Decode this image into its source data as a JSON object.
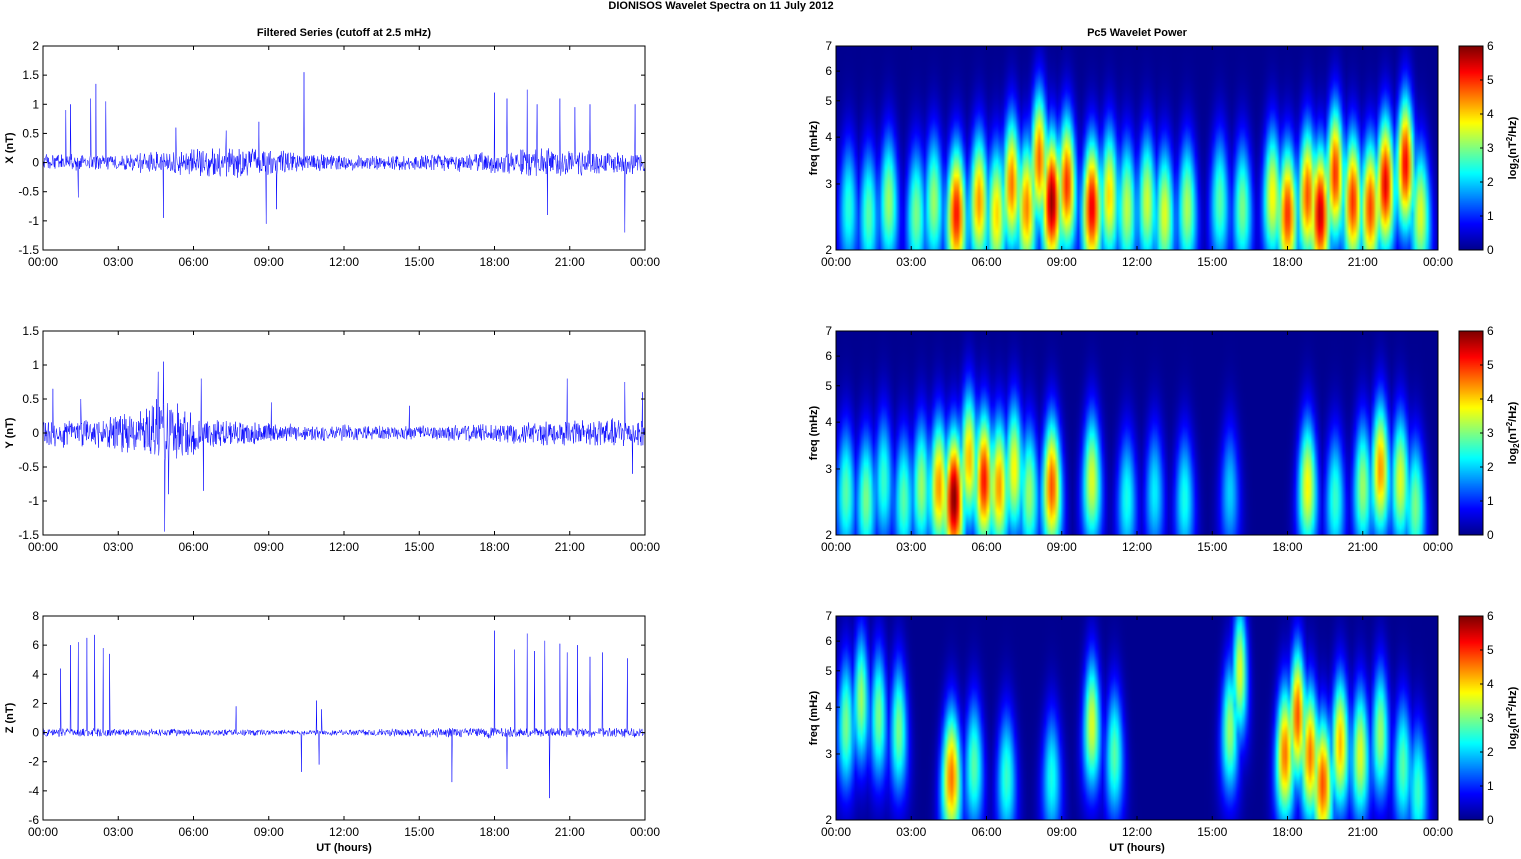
{
  "figure": {
    "title": "DIONISOS Wavelet Spectra on 11 July      2012",
    "left_title": "Filtered Series (cutoff at 2.5 mHz)",
    "right_title": "Pc5 Wavelet Power"
  },
  "chart_data": [
    {
      "type": "line",
      "ylabel": "X (nT)",
      "xlabel": "",
      "ylim": [
        -1.5,
        2
      ],
      "yticks": [
        "-1.5",
        "-1",
        "-0.5",
        "0",
        "0.5",
        "1",
        "1.5",
        "2"
      ],
      "xticks": [
        "00:00",
        "03:00",
        "06:00",
        "09:00",
        "12:00",
        "15:00",
        "18:00",
        "21:00",
        "00:00"
      ],
      "line_color": "#0000ff",
      "series": [
        {
          "noise_profile_hours": [
            0,
            3,
            4.5,
            6,
            8,
            9,
            10,
            12,
            15,
            18,
            19.5,
            21,
            24
          ],
          "noise_profile_amplitude": [
            0.12,
            0.1,
            0.16,
            0.18,
            0.22,
            0.18,
            0.14,
            0.1,
            0.1,
            0.14,
            0.2,
            0.18,
            0.14
          ],
          "spikes": [
            [
              0.9,
              0.9
            ],
            [
              1.1,
              1.0
            ],
            [
              1.4,
              -0.6
            ],
            [
              1.9,
              1.1
            ],
            [
              2.1,
              1.35
            ],
            [
              2.5,
              1.05
            ],
            [
              4.8,
              -0.95
            ],
            [
              5.3,
              0.6
            ],
            [
              7.3,
              0.55
            ],
            [
              8.6,
              0.7
            ],
            [
              8.9,
              -1.05
            ],
            [
              9.3,
              -0.8
            ],
            [
              10.4,
              1.55
            ],
            [
              18.0,
              1.2
            ],
            [
              18.5,
              1.1
            ],
            [
              19.3,
              1.25
            ],
            [
              19.7,
              1.0
            ],
            [
              20.1,
              -0.9
            ],
            [
              20.6,
              1.1
            ],
            [
              21.2,
              0.95
            ],
            [
              21.8,
              1.0
            ],
            [
              23.2,
              -1.2
            ],
            [
              23.6,
              1.0
            ]
          ]
        }
      ]
    },
    {
      "type": "line",
      "ylabel": "Y (nT)",
      "xlabel": "",
      "ylim": [
        -1.5,
        1.5
      ],
      "yticks": [
        "-1.5",
        "-1",
        "-0.5",
        "0",
        "0.5",
        "1",
        "1.5"
      ],
      "xticks": [
        "00:00",
        "03:00",
        "06:00",
        "09:00",
        "12:00",
        "15:00",
        "18:00",
        "21:00",
        "00:00"
      ],
      "line_color": "#0000ff",
      "series": [
        {
          "noise_profile_hours": [
            0,
            2,
            4,
            4.8,
            5.5,
            6.5,
            8,
            10,
            14,
            18,
            20,
            22,
            24
          ],
          "noise_profile_amplitude": [
            0.18,
            0.16,
            0.25,
            0.45,
            0.3,
            0.2,
            0.14,
            0.1,
            0.08,
            0.1,
            0.14,
            0.16,
            0.18
          ],
          "spikes": [
            [
              0.4,
              0.65
            ],
            [
              1.5,
              0.5
            ],
            [
              4.6,
              0.9
            ],
            [
              4.8,
              1.05
            ],
            [
              4.85,
              -1.45
            ],
            [
              5.0,
              -0.9
            ],
            [
              6.3,
              0.8
            ],
            [
              6.4,
              -0.85
            ],
            [
              9.1,
              0.45
            ],
            [
              14.6,
              0.4
            ],
            [
              20.9,
              0.8
            ],
            [
              23.2,
              0.75
            ],
            [
              23.5,
              -0.6
            ],
            [
              23.9,
              0.6
            ]
          ]
        }
      ]
    },
    {
      "type": "line",
      "ylabel": "Z (nT)",
      "xlabel": "UT (hours)",
      "ylim": [
        -6,
        8
      ],
      "yticks": [
        "-6",
        "-4",
        "-2",
        "0",
        "2",
        "4",
        "6",
        "8"
      ],
      "xticks": [
        "00:00",
        "03:00",
        "06:00",
        "09:00",
        "12:00",
        "15:00",
        "18:00",
        "21:00",
        "00:00"
      ],
      "line_color": "#0000ff",
      "series": [
        {
          "noise_profile_hours": [
            0,
            3,
            5,
            10,
            12,
            18,
            20,
            24
          ],
          "noise_profile_amplitude": [
            0.25,
            0.2,
            0.2,
            0.15,
            0.15,
            0.3,
            0.25,
            0.25
          ],
          "spikes": [
            [
              0.7,
              4.4
            ],
            [
              1.1,
              6.0
            ],
            [
              1.4,
              6.2
            ],
            [
              1.75,
              6.5
            ],
            [
              2.05,
              6.7
            ],
            [
              2.4,
              5.8
            ],
            [
              2.65,
              5.4
            ],
            [
              7.7,
              1.8
            ],
            [
              10.3,
              -2.7
            ],
            [
              10.9,
              2.2
            ],
            [
              11.1,
              1.6
            ],
            [
              11.0,
              -2.2
            ],
            [
              16.3,
              -3.4
            ],
            [
              18.0,
              7.0
            ],
            [
              18.5,
              -2.5
            ],
            [
              18.8,
              5.7
            ],
            [
              19.3,
              6.8
            ],
            [
              19.6,
              5.6
            ],
            [
              20.0,
              6.3
            ],
            [
              20.2,
              -4.5
            ],
            [
              20.6,
              6.1
            ],
            [
              20.9,
              5.5
            ],
            [
              21.3,
              6.0
            ],
            [
              21.8,
              5.2
            ],
            [
              22.3,
              5.5
            ],
            [
              23.3,
              5.1
            ]
          ]
        }
      ]
    },
    {
      "type": "heatmap",
      "ylabel": "freq (mHz)",
      "xlabel": "",
      "ylim": [
        2,
        7
      ],
      "yscale": "log",
      "yticks": [
        "2",
        "3",
        "4",
        "5",
        "6",
        "7"
      ],
      "xticks": [
        "00:00",
        "03:00",
        "06:00",
        "09:00",
        "12:00",
        "15:00",
        "18:00",
        "21:00",
        "00:00"
      ],
      "colorbar": {
        "label": "log2(nT2/Hz)",
        "ticks": [
          "0",
          "1",
          "2",
          "3",
          "4",
          "5",
          "6"
        ],
        "range": [
          0,
          6
        ]
      },
      "colormap": [
        "#00008f",
        "#0000ff",
        "#00ffff",
        "#ffff00",
        "#ff7f00",
        "#ff0000",
        "#800000"
      ],
      "blobs": [
        [
          0.5,
          2.6,
          2.5
        ],
        [
          1.3,
          2.5,
          2.8
        ],
        [
          2.1,
          2.7,
          3.2
        ],
        [
          3.2,
          2.5,
          3.0
        ],
        [
          3.9,
          2.7,
          3.2
        ],
        [
          4.8,
          2.5,
          5.2
        ],
        [
          5.7,
          2.7,
          4.4
        ],
        [
          6.4,
          2.5,
          4.0
        ],
        [
          7.0,
          3.0,
          4.6
        ],
        [
          7.6,
          2.6,
          4.5
        ],
        [
          8.1,
          3.5,
          4.7
        ],
        [
          8.6,
          2.7,
          5.9
        ],
        [
          9.2,
          3.0,
          5.0
        ],
        [
          10.2,
          2.6,
          5.4
        ],
        [
          10.9,
          2.8,
          4.0
        ],
        [
          11.6,
          2.6,
          3.4
        ],
        [
          12.4,
          2.7,
          3.5
        ],
        [
          13.1,
          2.5,
          3.6
        ],
        [
          14.0,
          2.6,
          3.3
        ],
        [
          15.3,
          2.7,
          2.8
        ],
        [
          16.2,
          2.6,
          3.0
        ],
        [
          17.4,
          2.8,
          3.8
        ],
        [
          18.0,
          2.5,
          5.0
        ],
        [
          18.8,
          2.8,
          4.8
        ],
        [
          19.3,
          2.5,
          5.6
        ],
        [
          19.9,
          3.2,
          5.0
        ],
        [
          20.6,
          2.7,
          5.0
        ],
        [
          21.3,
          2.6,
          4.9
        ],
        [
          21.9,
          3.0,
          5.4
        ],
        [
          22.7,
          3.4,
          5.3
        ],
        [
          23.3,
          2.5,
          3.6
        ]
      ]
    },
    {
      "type": "heatmap",
      "ylabel": "freq (mHz)",
      "xlabel": "",
      "ylim": [
        2,
        7
      ],
      "yscale": "log",
      "yticks": [
        "2",
        "3",
        "4",
        "5",
        "6",
        "7"
      ],
      "xticks": [
        "00:00",
        "03:00",
        "06:00",
        "09:00",
        "12:00",
        "15:00",
        "18:00",
        "21:00",
        "00:00"
      ],
      "colorbar": {
        "label": "log2(nT2/Hz)",
        "ticks": [
          "0",
          "1",
          "2",
          "3",
          "4",
          "5",
          "6"
        ],
        "range": [
          0,
          6
        ]
      },
      "colormap": [
        "#00008f",
        "#0000ff",
        "#00ffff",
        "#ffff00",
        "#ff7f00",
        "#ff0000",
        "#800000"
      ],
      "blobs": [
        [
          0.4,
          2.6,
          2.8
        ],
        [
          1.2,
          2.5,
          3.0
        ],
        [
          1.9,
          2.8,
          2.6
        ],
        [
          2.7,
          2.5,
          2.8
        ],
        [
          3.4,
          2.7,
          3.2
        ],
        [
          4.1,
          2.7,
          4.4
        ],
        [
          4.7,
          2.5,
          6.0
        ],
        [
          5.3,
          3.2,
          4.2
        ],
        [
          5.9,
          2.8,
          5.2
        ],
        [
          6.5,
          2.7,
          4.4
        ],
        [
          7.1,
          3.0,
          3.8
        ],
        [
          7.7,
          2.6,
          3.2
        ],
        [
          8.6,
          2.7,
          4.8
        ],
        [
          10.2,
          2.8,
          3.6
        ],
        [
          11.6,
          2.5,
          2.4
        ],
        [
          12.7,
          2.6,
          2.2
        ],
        [
          13.9,
          2.5,
          2.4
        ],
        [
          15.7,
          2.6,
          2.0
        ],
        [
          18.8,
          2.7,
          3.8
        ],
        [
          19.9,
          2.5,
          2.6
        ],
        [
          21.0,
          2.7,
          3.2
        ],
        [
          21.7,
          3.0,
          4.4
        ],
        [
          22.5,
          2.8,
          3.6
        ],
        [
          23.1,
          2.4,
          3.0
        ]
      ]
    },
    {
      "type": "heatmap",
      "ylabel": "freq (mHz)",
      "xlabel": "UT (hours)",
      "ylim": [
        2,
        7
      ],
      "yscale": "log",
      "yticks": [
        "2",
        "3",
        "4",
        "5",
        "6",
        "7"
      ],
      "xticks": [
        "00:00",
        "03:00",
        "06:00",
        "09:00",
        "12:00",
        "15:00",
        "18:00",
        "21:00",
        "00:00"
      ],
      "colorbar": {
        "label": "log2(nT2/Hz)",
        "ticks": [
          "0",
          "1",
          "2",
          "3",
          "4",
          "5",
          "6"
        ],
        "range": [
          0,
          6
        ]
      },
      "colormap": [
        "#00008f",
        "#0000ff",
        "#00ffff",
        "#ffff00",
        "#ff7f00",
        "#ff0000",
        "#800000"
      ],
      "blobs": [
        [
          0.4,
          3.6,
          3.0
        ],
        [
          1.0,
          4.2,
          3.2
        ],
        [
          1.7,
          3.8,
          3.0
        ],
        [
          2.5,
          3.5,
          3.0
        ],
        [
          4.6,
          2.6,
          4.6
        ],
        [
          5.5,
          2.8,
          2.8
        ],
        [
          6.8,
          2.6,
          2.6
        ],
        [
          8.6,
          2.6,
          2.4
        ],
        [
          10.2,
          3.6,
          3.6
        ],
        [
          11.1,
          3.0,
          2.8
        ],
        [
          15.7,
          3.5,
          3.2
        ],
        [
          16.1,
          5.0,
          3.6
        ],
        [
          17.9,
          3.0,
          4.6
        ],
        [
          18.4,
          3.8,
          4.8
        ],
        [
          18.9,
          3.0,
          4.6
        ],
        [
          19.4,
          2.5,
          4.8
        ],
        [
          20.1,
          3.2,
          4.2
        ],
        [
          20.9,
          3.0,
          3.6
        ],
        [
          21.7,
          3.4,
          3.2
        ],
        [
          22.6,
          2.8,
          2.8
        ],
        [
          23.2,
          2.4,
          2.6
        ]
      ]
    }
  ]
}
